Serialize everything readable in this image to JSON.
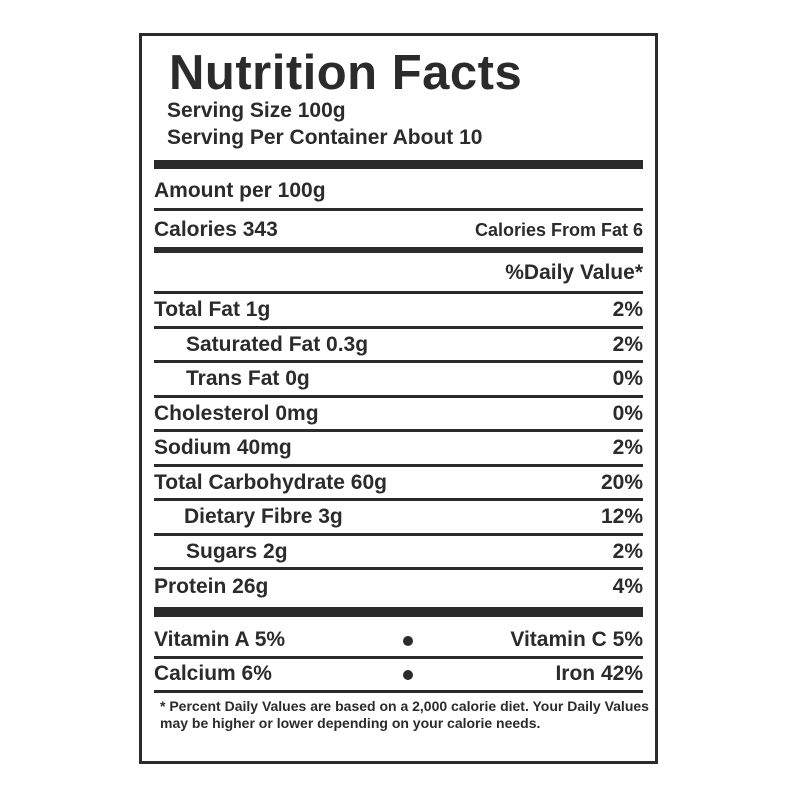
{
  "title": "Nutrition Facts",
  "serving_size": "Serving Size 100g",
  "servings_per_container": "Serving Per Container About 10",
  "amount_per": "Amount per 100g",
  "calories": "Calories 343",
  "calories_from_fat": "Calories From Fat 6",
  "daily_value_header": "%Daily Value*",
  "nutrients": [
    {
      "label": "Total Fat 1g",
      "dv": "2%"
    },
    {
      "label": "Saturated Fat 0.3g",
      "dv": "2%"
    },
    {
      "label": "Trans Fat 0g",
      "dv": "0%"
    },
    {
      "label": "Cholesterol 0mg",
      "dv": "0%"
    },
    {
      "label": "Sodium 40mg",
      "dv": "2%"
    },
    {
      "label": "Total Carbohydrate 60g",
      "dv": "20%"
    },
    {
      "label": "Dietary Fibre 3g",
      "dv": "12%"
    },
    {
      "label": "Sugars 2g",
      "dv": "2%"
    },
    {
      "label": "Protein 26g",
      "dv": "4%"
    }
  ],
  "vitamins": [
    {
      "left": "Vitamin A 5%",
      "right": "Vitamin C 5%"
    },
    {
      "left": "Calcium 6%",
      "right": "Iron 42%"
    }
  ],
  "footnote": "* Percent Daily Values are based on a 2,000 calorie diet. Your Daily Values may be higher or lower depending on your calorie needs.",
  "colors": {
    "ink": "#2b2b2b",
    "background": "#ffffff"
  }
}
